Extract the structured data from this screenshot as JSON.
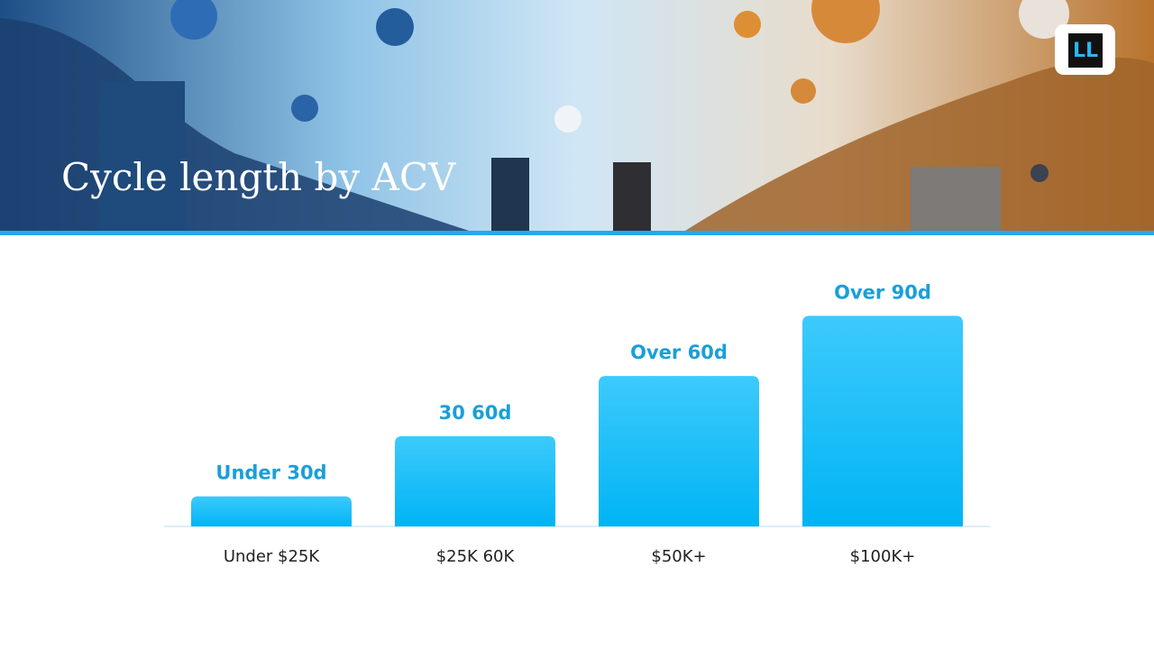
{
  "logo": "LL",
  "chart_data": {
    "type": "bar",
    "title": "Cycle length by ACV",
    "categories": [
      "Under $25K",
      "$25K 60K",
      "$50K+",
      "$100K+"
    ],
    "values": [
      15,
      45,
      75,
      105
    ],
    "value_labels": [
      "Under 30d",
      "30 60d",
      "Over 60d",
      "Over 90d"
    ],
    "color": "#1cbff8",
    "ylim": [
      0,
      120
    ]
  }
}
